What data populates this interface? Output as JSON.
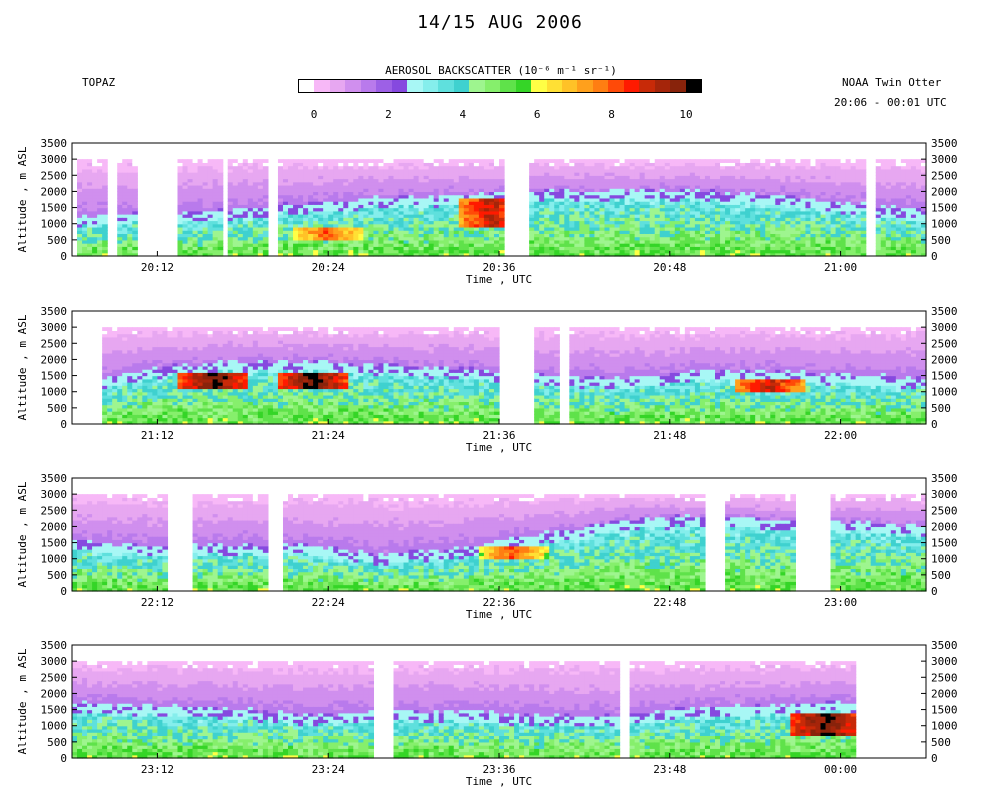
{
  "title": "14/15 AUG 2006",
  "left_label": "TOPAZ",
  "right_label": "NOAA Twin Otter",
  "time_range": "20:06 - 00:01 UTC",
  "colorbar": {
    "title": "AEROSOL BACKSCATTER (10⁻⁶ m⁻¹ sr⁻¹)",
    "ticks": [
      "0",
      "2",
      "4",
      "6",
      "8",
      "10"
    ],
    "colors": [
      "#ffffff",
      "#f7b8f7",
      "#e7a7f1",
      "#d08fee",
      "#b97aec",
      "#9d60e6",
      "#8649df",
      "#a8f7f5",
      "#85eeec",
      "#5fe0dd",
      "#3fd1cf",
      "#9ef58f",
      "#86ef6c",
      "#5fe24a",
      "#35d527",
      "#ffff45",
      "#ffe034",
      "#ffc227",
      "#ffa01c",
      "#ff7e12",
      "#ff4a08",
      "#ff1a00",
      "#c82a08",
      "#a5250a",
      "#88230b",
      "#000000"
    ]
  },
  "chart_data": [
    {
      "type": "heatmap",
      "xlabel": "Time , UTC",
      "ylabel": "Altitude , m ASL",
      "xlim": [
        "20:06",
        "21:06"
      ],
      "ylim": [
        0,
        3500
      ],
      "xticks": [
        "20:12",
        "20:24",
        "20:36",
        "20:48",
        "21:00"
      ],
      "yticks": [
        "0",
        "500",
        "1000",
        "1500",
        "2000",
        "2500",
        "3000",
        "3500"
      ],
      "top_altitude": 3000,
      "gaps": [
        [
          "20:06",
          "20:06.5"
        ],
        [
          "20:08.5",
          "20:09.2"
        ],
        [
          "20:10.5",
          "20:13.5"
        ],
        [
          "20:16.6",
          "20:16.8"
        ],
        [
          "20:17.9",
          "20:18.1"
        ],
        [
          "20:19.8",
          "20:20.3"
        ],
        [
          "20:36.5",
          "20:38"
        ],
        [
          "21:01.8",
          "21:02.5"
        ]
      ],
      "mixed_layer_top_m": [
        1050,
        1200,
        1300,
        1500,
        1700,
        1750,
        1850,
        1900,
        1900,
        1750,
        1500,
        1300
      ],
      "high_backscatter_events": [
        {
          "time": "20:24",
          "alt_m": [
            500,
            900
          ],
          "value": 8
        },
        {
          "time": "20:35.5",
          "alt_m": [
            900,
            1800
          ],
          "value": 9
        }
      ]
    },
    {
      "type": "heatmap",
      "xlabel": "Time , UTC",
      "ylabel": "Altitude , m ASL",
      "xlim": [
        "21:06",
        "22:06"
      ],
      "ylim": [
        0,
        3500
      ],
      "xticks": [
        "21:12",
        "21:24",
        "21:36",
        "21:48",
        "22:00"
      ],
      "yticks": [
        "0",
        "500",
        "1000",
        "1500",
        "2000",
        "2500",
        "3000",
        "3500"
      ],
      "top_altitude": 3000,
      "gaps": [
        [
          "21:06",
          "21:08"
        ],
        [
          "21:36",
          "21:38.5"
        ],
        [
          "21:40.2",
          "21:41"
        ]
      ],
      "mixed_layer_top_m": [
        1000,
        1600,
        1800,
        1800,
        1700,
        1600,
        1400,
        1300,
        1500,
        1500,
        1400,
        1300
      ],
      "high_backscatter_events": [
        {
          "time": "21:16",
          "alt_m": [
            1100,
            1600
          ],
          "value": 10
        },
        {
          "time": "21:23",
          "alt_m": [
            1100,
            1600
          ],
          "value": 10
        },
        {
          "time": "21:55",
          "alt_m": [
            1000,
            1400
          ],
          "value": 9
        }
      ]
    },
    {
      "type": "heatmap",
      "xlabel": "Time , UTC",
      "ylabel": "Altitude , m ASL",
      "xlim": [
        "22:06",
        "23:06"
      ],
      "ylim": [
        0,
        3500
      ],
      "xticks": [
        "22:12",
        "22:24",
        "22:36",
        "22:48",
        "23:00"
      ],
      "yticks": [
        "0",
        "500",
        "1000",
        "1500",
        "2000",
        "2500",
        "3000",
        "3500"
      ],
      "top_altitude": 3000,
      "gaps": [
        [
          "22:12.7",
          "22:14.3"
        ],
        [
          "22:19.8",
          "22:20.9"
        ],
        [
          "22:50.5",
          "22:51.8"
        ],
        [
          "22:57",
          "22:59.2"
        ]
      ],
      "mixed_layer_top_m": [
        1400,
        1300,
        1300,
        1300,
        1000,
        1200,
        1600,
        2000,
        2200,
        2100,
        2000,
        1900
      ],
      "high_backscatter_events": [
        {
          "time": "22:37",
          "alt_m": [
            1000,
            1400
          ],
          "value": 8
        }
      ]
    },
    {
      "type": "heatmap",
      "xlabel": "Time , UTC",
      "ylabel": "Altitude , m ASL",
      "xlim": [
        "23:06",
        "00:06"
      ],
      "ylim": [
        0,
        3500
      ],
      "xticks": [
        "23:12",
        "23:24",
        "23:36",
        "23:48",
        "00:00"
      ],
      "yticks": [
        "0",
        "500",
        "1000",
        "1500",
        "2000",
        "2500",
        "3000",
        "3500"
      ],
      "top_altitude": 3000,
      "gaps": [
        [
          "23:27.2",
          "23:28.5"
        ],
        [
          "23:44.5",
          "23:45"
        ],
        [
          "00:01",
          "00:06"
        ]
      ],
      "mixed_layer_top_m": [
        1600,
        1500,
        1400,
        1200,
        1300,
        1300,
        1200,
        1200,
        1400,
        1500,
        1600,
        1600
      ],
      "high_backscatter_events": [
        {
          "time": "23:59",
          "alt_m": [
            700,
            1400
          ],
          "value": 10
        }
      ]
    }
  ]
}
